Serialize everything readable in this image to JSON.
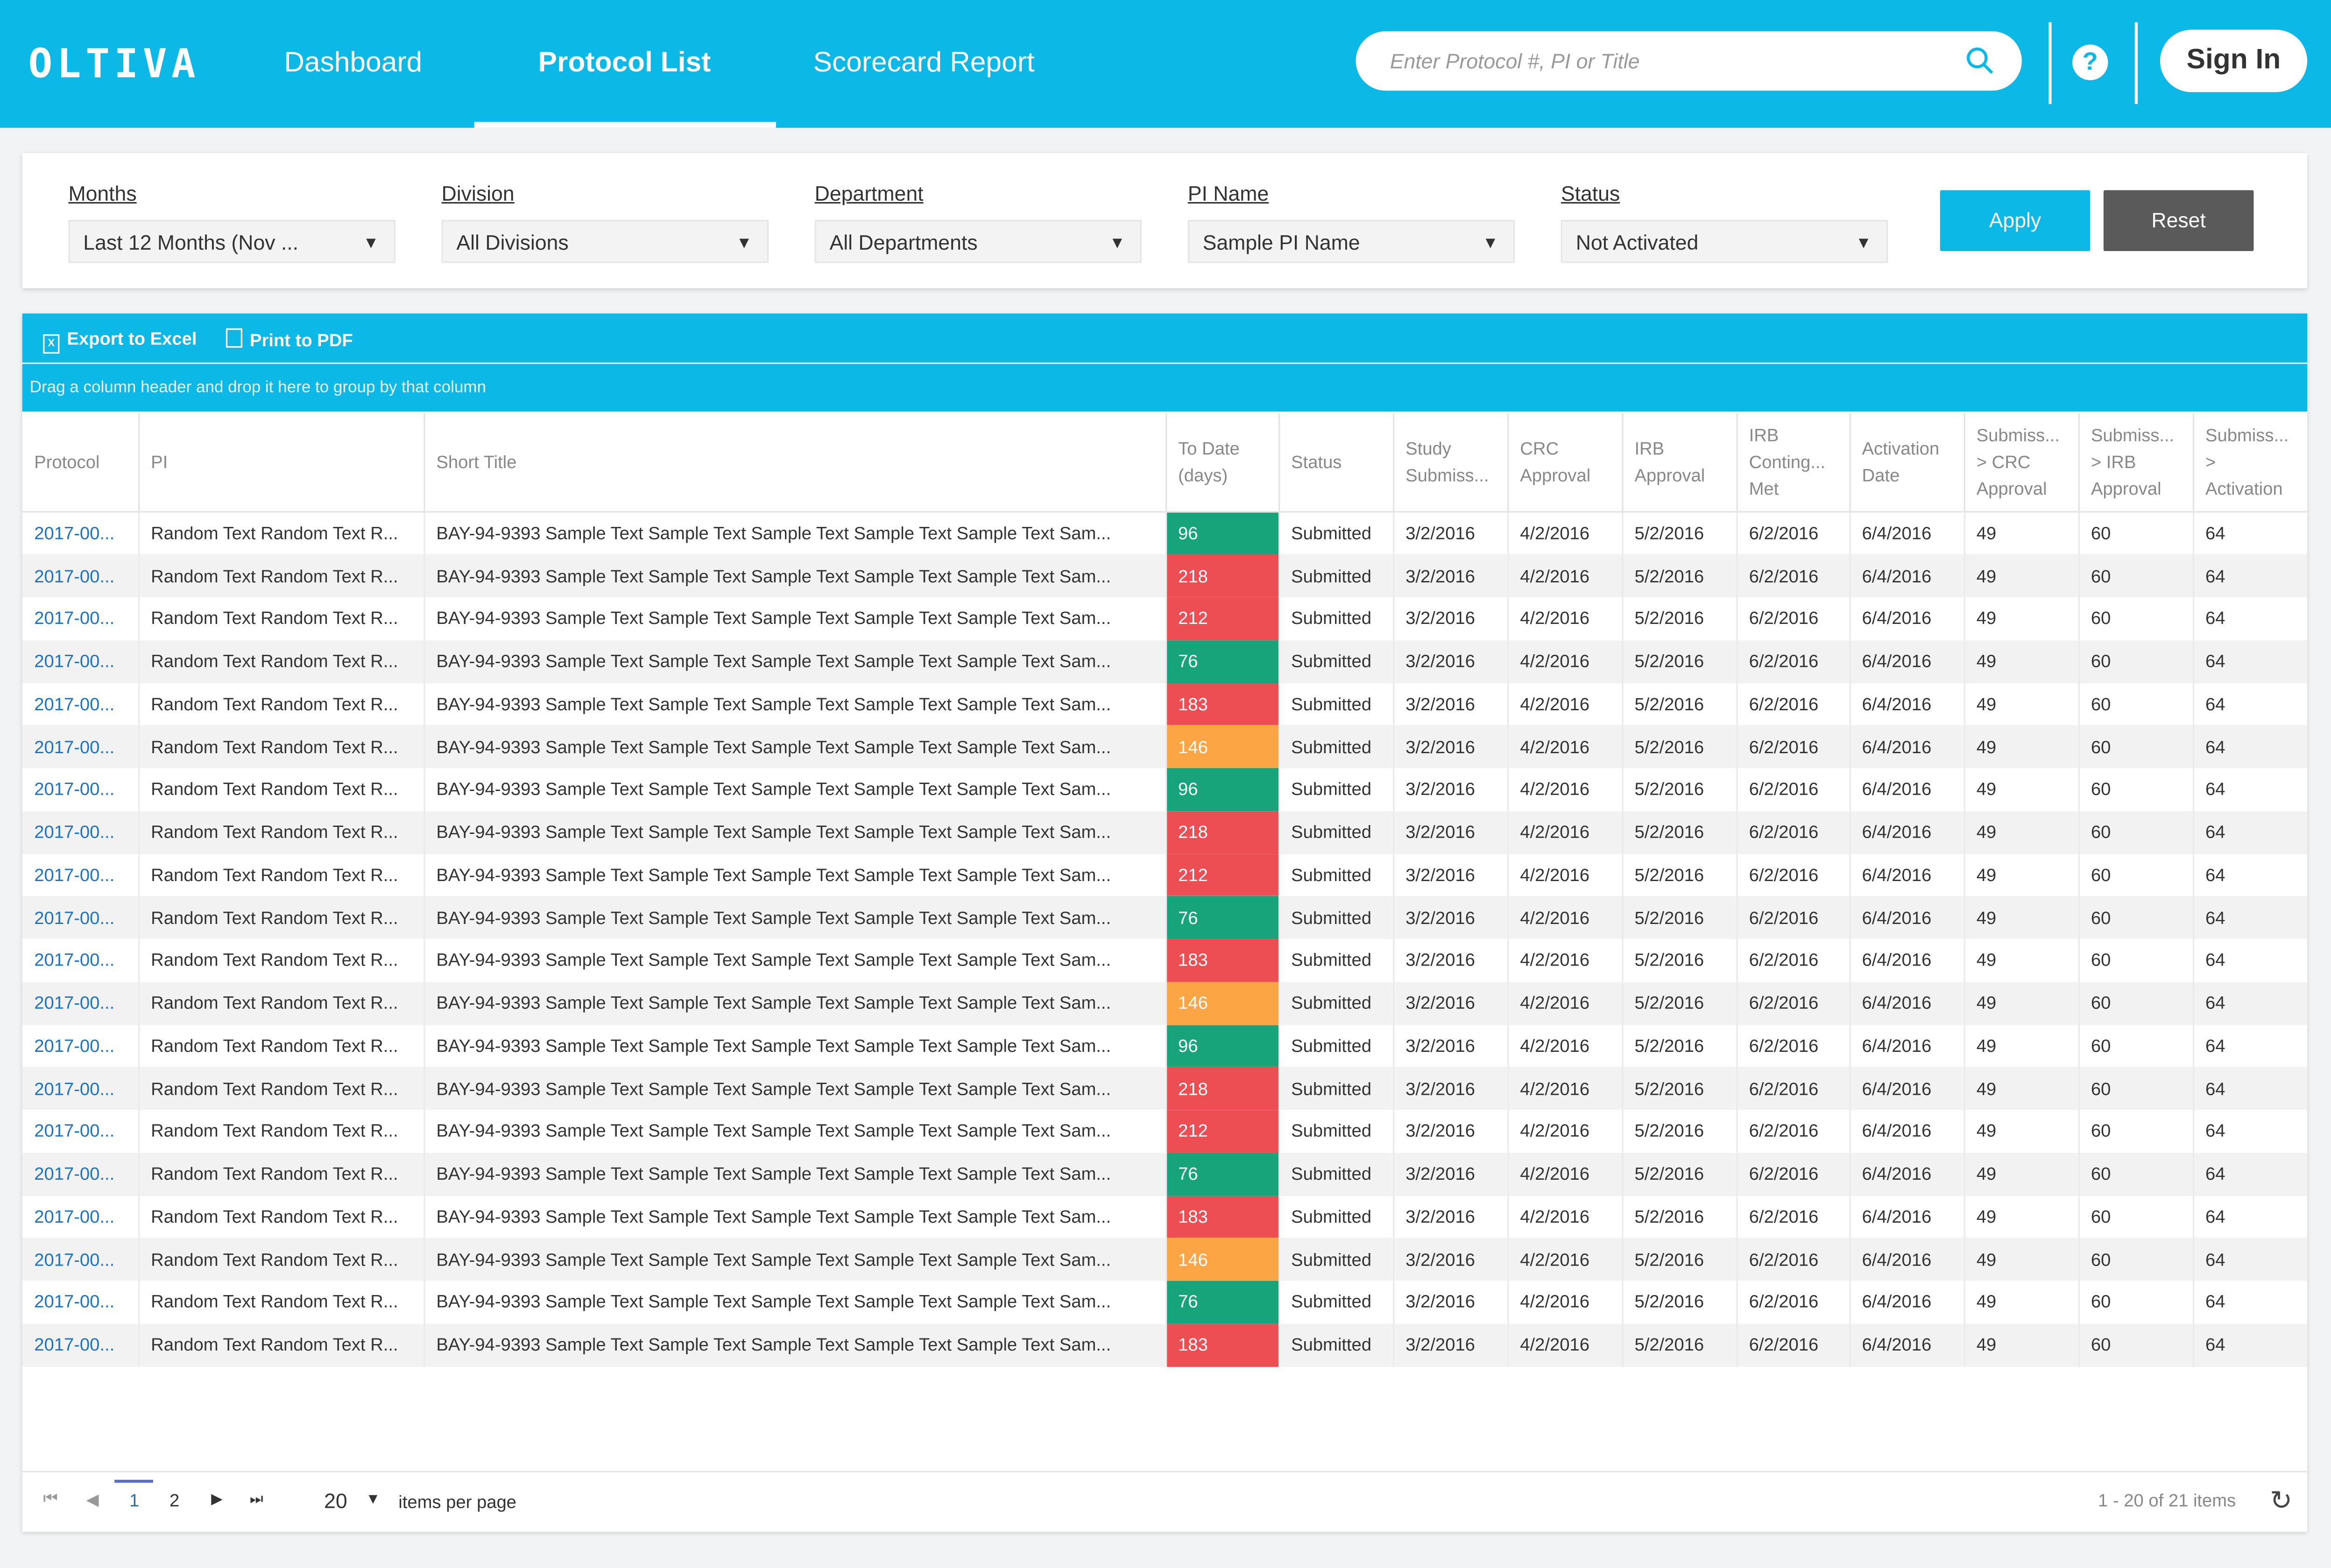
{
  "app": {
    "logo": "OLTIVA",
    "nav": [
      "Dashboard",
      "Protocol List",
      "Scorecard Report"
    ],
    "search_placeholder": "Enter Protocol #, PI or Title",
    "help": "?",
    "sign_in": "Sign In",
    "accent": "#0cb9e6"
  },
  "filters": {
    "months_label": "Months",
    "months_value": "Last 12 Months (Nov ...",
    "division_label": "Division",
    "division_value": "All Divisions",
    "department_label": "Department",
    "department_value": "All Departments",
    "pi_label": "PI Name",
    "pi_value": "Sample PI Name",
    "status_label": "Status",
    "status_value": "Not Activated",
    "apply": "Apply",
    "reset": "Reset"
  },
  "toolbar": {
    "export_excel": "Export to Excel",
    "print_pdf": "Print to PDF"
  },
  "group_hint": "Drag a column header and drop it here to group by that column",
  "columns": [
    "Protocol",
    "PI",
    "Short Title",
    "To Date (days)",
    "Status",
    "Study Submiss...",
    "CRC Approval",
    "IRB Approval",
    "IRB Conting... Met",
    "Activation Date",
    "Submiss... > CRC Approval",
    "Submiss... > IRB Approval",
    "Submiss... > Activation"
  ],
  "status_colors": {
    "green": "#17a47a",
    "red": "#ec4e53",
    "orange": "#fba544"
  },
  "rows": [
    {
      "protocol": "2017-00...",
      "pi": "Random Text Random Text R...",
      "title": "BAY-94-9393 Sample Text Sample Text Sample Text Sample Text Sample Text Sam...",
      "days": "96",
      "color": "#17a47a",
      "status": "Submitted",
      "study": "3/2/2016",
      "crc": "4/2/2016",
      "irb": "5/2/2016",
      "cont": "6/2/2016",
      "act": "6/4/2016",
      "s1": "49",
      "s2": "60",
      "s3": "64"
    },
    {
      "protocol": "2017-00...",
      "pi": "Random Text Random Text R...",
      "title": "BAY-94-9393 Sample Text Sample Text Sample Text Sample Text Sample Text Sam...",
      "days": "218",
      "color": "#ec4e53",
      "status": "Submitted",
      "study": "3/2/2016",
      "crc": "4/2/2016",
      "irb": "5/2/2016",
      "cont": "6/2/2016",
      "act": "6/4/2016",
      "s1": "49",
      "s2": "60",
      "s3": "64"
    },
    {
      "protocol": "2017-00...",
      "pi": "Random Text Random Text R...",
      "title": "BAY-94-9393 Sample Text Sample Text Sample Text Sample Text Sample Text Sam...",
      "days": "212",
      "color": "#ec4e53",
      "status": "Submitted",
      "study": "3/2/2016",
      "crc": "4/2/2016",
      "irb": "5/2/2016",
      "cont": "6/2/2016",
      "act": "6/4/2016",
      "s1": "49",
      "s2": "60",
      "s3": "64"
    },
    {
      "protocol": "2017-00...",
      "pi": "Random Text Random Text R...",
      "title": "BAY-94-9393 Sample Text Sample Text Sample Text Sample Text Sample Text Sam...",
      "days": "76",
      "color": "#17a47a",
      "status": "Submitted",
      "study": "3/2/2016",
      "crc": "4/2/2016",
      "irb": "5/2/2016",
      "cont": "6/2/2016",
      "act": "6/4/2016",
      "s1": "49",
      "s2": "60",
      "s3": "64"
    },
    {
      "protocol": "2017-00...",
      "pi": "Random Text Random Text R...",
      "title": "BAY-94-9393 Sample Text Sample Text Sample Text Sample Text Sample Text Sam...",
      "days": "183",
      "color": "#ec4e53",
      "status": "Submitted",
      "study": "3/2/2016",
      "crc": "4/2/2016",
      "irb": "5/2/2016",
      "cont": "6/2/2016",
      "act": "6/4/2016",
      "s1": "49",
      "s2": "60",
      "s3": "64"
    },
    {
      "protocol": "2017-00...",
      "pi": "Random Text Random Text R...",
      "title": "BAY-94-9393 Sample Text Sample Text Sample Text Sample Text Sample Text Sam...",
      "days": "146",
      "color": "#fba544",
      "status": "Submitted",
      "study": "3/2/2016",
      "crc": "4/2/2016",
      "irb": "5/2/2016",
      "cont": "6/2/2016",
      "act": "6/4/2016",
      "s1": "49",
      "s2": "60",
      "s3": "64"
    },
    {
      "protocol": "2017-00...",
      "pi": "Random Text Random Text R...",
      "title": "BAY-94-9393 Sample Text Sample Text Sample Text Sample Text Sample Text Sam...",
      "days": "96",
      "color": "#17a47a",
      "status": "Submitted",
      "study": "3/2/2016",
      "crc": "4/2/2016",
      "irb": "5/2/2016",
      "cont": "6/2/2016",
      "act": "6/4/2016",
      "s1": "49",
      "s2": "60",
      "s3": "64"
    },
    {
      "protocol": "2017-00...",
      "pi": "Random Text Random Text R...",
      "title": "BAY-94-9393 Sample Text Sample Text Sample Text Sample Text Sample Text Sam...",
      "days": "218",
      "color": "#ec4e53",
      "status": "Submitted",
      "study": "3/2/2016",
      "crc": "4/2/2016",
      "irb": "5/2/2016",
      "cont": "6/2/2016",
      "act": "6/4/2016",
      "s1": "49",
      "s2": "60",
      "s3": "64"
    },
    {
      "protocol": "2017-00...",
      "pi": "Random Text Random Text R...",
      "title": "BAY-94-9393 Sample Text Sample Text Sample Text Sample Text Sample Text Sam...",
      "days": "212",
      "color": "#ec4e53",
      "status": "Submitted",
      "study": "3/2/2016",
      "crc": "4/2/2016",
      "irb": "5/2/2016",
      "cont": "6/2/2016",
      "act": "6/4/2016",
      "s1": "49",
      "s2": "60",
      "s3": "64"
    },
    {
      "protocol": "2017-00...",
      "pi": "Random Text Random Text R...",
      "title": "BAY-94-9393 Sample Text Sample Text Sample Text Sample Text Sample Text Sam...",
      "days": "76",
      "color": "#17a47a",
      "status": "Submitted",
      "study": "3/2/2016",
      "crc": "4/2/2016",
      "irb": "5/2/2016",
      "cont": "6/2/2016",
      "act": "6/4/2016",
      "s1": "49",
      "s2": "60",
      "s3": "64"
    },
    {
      "protocol": "2017-00...",
      "pi": "Random Text Random Text R...",
      "title": "BAY-94-9393 Sample Text Sample Text Sample Text Sample Text Sample Text Sam...",
      "days": "183",
      "color": "#ec4e53",
      "status": "Submitted",
      "study": "3/2/2016",
      "crc": "4/2/2016",
      "irb": "5/2/2016",
      "cont": "6/2/2016",
      "act": "6/4/2016",
      "s1": "49",
      "s2": "60",
      "s3": "64"
    },
    {
      "protocol": "2017-00...",
      "pi": "Random Text Random Text R...",
      "title": "BAY-94-9393 Sample Text Sample Text Sample Text Sample Text Sample Text Sam...",
      "days": "146",
      "color": "#fba544",
      "status": "Submitted",
      "study": "3/2/2016",
      "crc": "4/2/2016",
      "irb": "5/2/2016",
      "cont": "6/2/2016",
      "act": "6/4/2016",
      "s1": "49",
      "s2": "60",
      "s3": "64"
    },
    {
      "protocol": "2017-00...",
      "pi": "Random Text Random Text R...",
      "title": "BAY-94-9393 Sample Text Sample Text Sample Text Sample Text Sample Text Sam...",
      "days": "96",
      "color": "#17a47a",
      "status": "Submitted",
      "study": "3/2/2016",
      "crc": "4/2/2016",
      "irb": "5/2/2016",
      "cont": "6/2/2016",
      "act": "6/4/2016",
      "s1": "49",
      "s2": "60",
      "s3": "64"
    },
    {
      "protocol": "2017-00...",
      "pi": "Random Text Random Text R...",
      "title": "BAY-94-9393 Sample Text Sample Text Sample Text Sample Text Sample Text Sam...",
      "days": "218",
      "color": "#ec4e53",
      "status": "Submitted",
      "study": "3/2/2016",
      "crc": "4/2/2016",
      "irb": "5/2/2016",
      "cont": "6/2/2016",
      "act": "6/4/2016",
      "s1": "49",
      "s2": "60",
      "s3": "64"
    },
    {
      "protocol": "2017-00...",
      "pi": "Random Text Random Text R...",
      "title": "BAY-94-9393 Sample Text Sample Text Sample Text Sample Text Sample Text Sam...",
      "days": "212",
      "color": "#ec4e53",
      "status": "Submitted",
      "study": "3/2/2016",
      "crc": "4/2/2016",
      "irb": "5/2/2016",
      "cont": "6/2/2016",
      "act": "6/4/2016",
      "s1": "49",
      "s2": "60",
      "s3": "64"
    },
    {
      "protocol": "2017-00...",
      "pi": "Random Text Random Text R...",
      "title": "BAY-94-9393 Sample Text Sample Text Sample Text Sample Text Sample Text Sam...",
      "days": "76",
      "color": "#17a47a",
      "status": "Submitted",
      "study": "3/2/2016",
      "crc": "4/2/2016",
      "irb": "5/2/2016",
      "cont": "6/2/2016",
      "act": "6/4/2016",
      "s1": "49",
      "s2": "60",
      "s3": "64"
    },
    {
      "protocol": "2017-00...",
      "pi": "Random Text Random Text R...",
      "title": "BAY-94-9393 Sample Text Sample Text Sample Text Sample Text Sample Text Sam...",
      "days": "183",
      "color": "#ec4e53",
      "status": "Submitted",
      "study": "3/2/2016",
      "crc": "4/2/2016",
      "irb": "5/2/2016",
      "cont": "6/2/2016",
      "act": "6/4/2016",
      "s1": "49",
      "s2": "60",
      "s3": "64"
    },
    {
      "protocol": "2017-00...",
      "pi": "Random Text Random Text R...",
      "title": "BAY-94-9393 Sample Text Sample Text Sample Text Sample Text Sample Text Sam...",
      "days": "146",
      "color": "#fba544",
      "status": "Submitted",
      "study": "3/2/2016",
      "crc": "4/2/2016",
      "irb": "5/2/2016",
      "cont": "6/2/2016",
      "act": "6/4/2016",
      "s1": "49",
      "s2": "60",
      "s3": "64"
    },
    {
      "protocol": "2017-00...",
      "pi": "Random Text Random Text R...",
      "title": "BAY-94-9393 Sample Text Sample Text Sample Text Sample Text Sample Text Sam...",
      "days": "76",
      "color": "#17a47a",
      "status": "Submitted",
      "study": "3/2/2016",
      "crc": "4/2/2016",
      "irb": "5/2/2016",
      "cont": "6/2/2016",
      "act": "6/4/2016",
      "s1": "49",
      "s2": "60",
      "s3": "64"
    },
    {
      "protocol": "2017-00...",
      "pi": "Random Text Random Text R...",
      "title": "BAY-94-9393 Sample Text Sample Text Sample Text Sample Text Sample Text Sam...",
      "days": "183",
      "color": "#ec4e53",
      "status": "Submitted",
      "study": "3/2/2016",
      "crc": "4/2/2016",
      "irb": "5/2/2016",
      "cont": "6/2/2016",
      "act": "6/4/2016",
      "s1": "49",
      "s2": "60",
      "s3": "64"
    }
  ],
  "pager": {
    "pages": [
      "1",
      "2"
    ],
    "current": "1",
    "per_page": "20",
    "per_page_label": "items per page",
    "summary": "1 - 20 of 21 items"
  }
}
